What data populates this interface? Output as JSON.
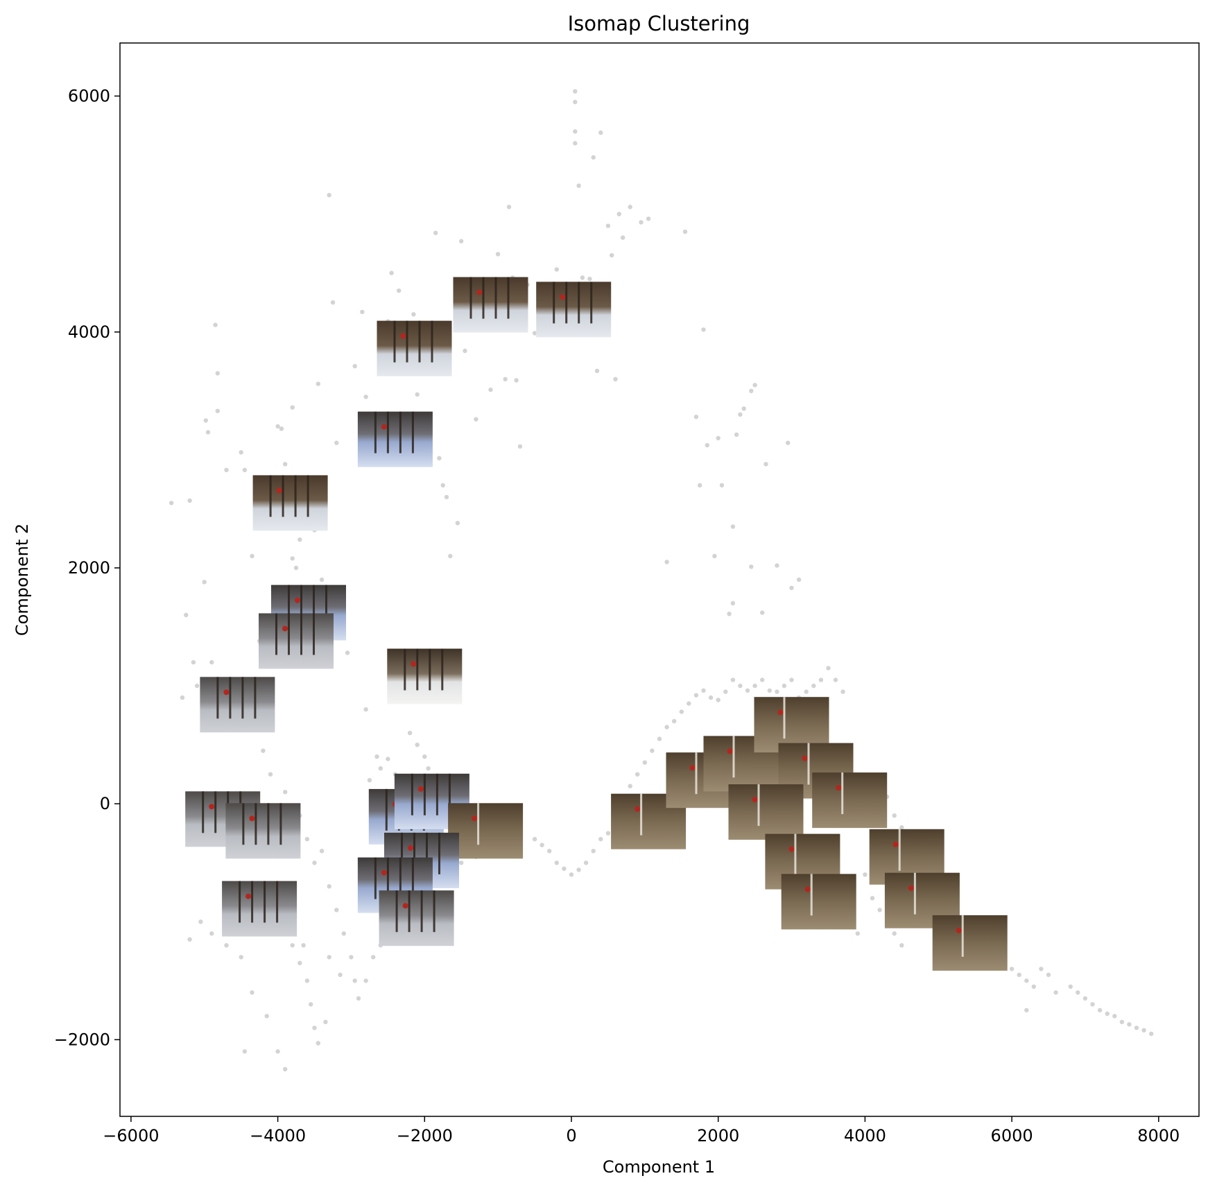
{
  "chart_data": {
    "type": "scatter",
    "title": "Isomap Clustering",
    "xlabel": "Component 1",
    "ylabel": "Component 2",
    "xlim": [
      -6150,
      8550
    ],
    "ylim": [
      -2650,
      6450
    ],
    "xticks": [
      -6000,
      -4000,
      -2000,
      0,
      2000,
      4000,
      6000,
      8000
    ],
    "yticks": [
      -2000,
      0,
      2000,
      4000,
      6000
    ],
    "grid": false,
    "legend": "none",
    "point_color": "#d3d3d3",
    "points": [
      [
        -5450,
        2550
      ],
      [
        -5200,
        2570
      ],
      [
        -5250,
        1600
      ],
      [
        -5150,
        1200
      ],
      [
        -5000,
        1880
      ],
      [
        -4950,
        3150
      ],
      [
        -4980,
        3250
      ],
      [
        -4850,
        4060
      ],
      [
        -4820,
        3650
      ],
      [
        -4820,
        3330
      ],
      [
        -4700,
        2830
      ],
      [
        -4500,
        2980
      ],
      [
        -4450,
        2830
      ],
      [
        -4350,
        2100
      ],
      [
        -4250,
        1380
      ],
      [
        -4200,
        1300
      ],
      [
        -4000,
        3200
      ],
      [
        -3950,
        3180
      ],
      [
        -3950,
        2560
      ],
      [
        -3900,
        2880
      ],
      [
        -3880,
        1650
      ],
      [
        -3800,
        3360
      ],
      [
        -3800,
        2080
      ],
      [
        -3750,
        2000
      ],
      [
        -3700,
        2240
      ],
      [
        -3600,
        2460
      ],
      [
        -3500,
        2320
      ],
      [
        -3450,
        3560
      ],
      [
        -3400,
        1900
      ],
      [
        -3350,
        1500
      ],
      [
        -3300,
        5160
      ],
      [
        -3250,
        4250
      ],
      [
        -3200,
        3060
      ],
      [
        -3100,
        1420
      ],
      [
        -3050,
        1280
      ],
      [
        -2950,
        3710
      ],
      [
        -2850,
        4170
      ],
      [
        -2800,
        3450
      ],
      [
        -2700,
        3270
      ],
      [
        -2600,
        4060
      ],
      [
        -2500,
        4090
      ],
      [
        -2450,
        4500
      ],
      [
        -2350,
        4350
      ],
      [
        -2250,
        3890
      ],
      [
        -2150,
        4150
      ],
      [
        -2100,
        3470
      ],
      [
        -2000,
        4000
      ],
      [
        -1850,
        4840
      ],
      [
        -1800,
        2930
      ],
      [
        -1750,
        2700
      ],
      [
        -1700,
        2600
      ],
      [
        -1650,
        2100
      ],
      [
        -1550,
        2380
      ],
      [
        -1500,
        4770
      ],
      [
        -1450,
        3840
      ],
      [
        -1350,
        4330
      ],
      [
        -1300,
        3260
      ],
      [
        -1250,
        4020
      ],
      [
        -1100,
        3510
      ],
      [
        -1000,
        4660
      ],
      [
        -900,
        3600
      ],
      [
        -800,
        4460
      ],
      [
        -750,
        3590
      ],
      [
        -700,
        3030
      ],
      [
        -850,
        5060
      ],
      [
        -600,
        4400
      ],
      [
        -500,
        3990
      ],
      [
        -400,
        4330
      ],
      [
        -300,
        4400
      ],
      [
        -200,
        4530
      ],
      [
        -100,
        4150
      ],
      [
        50,
        6040
      ],
      [
        50,
        5950
      ],
      [
        50,
        5700
      ],
      [
        50,
        5600
      ],
      [
        100,
        5240
      ],
      [
        150,
        4460
      ],
      [
        250,
        4450
      ],
      [
        300,
        5480
      ],
      [
        400,
        5690
      ],
      [
        350,
        3670
      ],
      [
        500,
        4900
      ],
      [
        550,
        4650
      ],
      [
        600,
        3600
      ],
      [
        650,
        5000
      ],
      [
        700,
        4800
      ],
      [
        800,
        5060
      ],
      [
        950,
        4930
      ],
      [
        1050,
        4960
      ],
      [
        1300,
        2050
      ],
      [
        1550,
        4850
      ],
      [
        1700,
        3280
      ],
      [
        1750,
        2700
      ],
      [
        1800,
        4020
      ],
      [
        1850,
        3040
      ],
      [
        1950,
        2100
      ],
      [
        2000,
        3100
      ],
      [
        2050,
        2700
      ],
      [
        2200,
        2350
      ],
      [
        2250,
        3130
      ],
      [
        2300,
        3300
      ],
      [
        2350,
        3350
      ],
      [
        2450,
        3500
      ],
      [
        2500,
        3550
      ],
      [
        2450,
        2010
      ],
      [
        2650,
        2880
      ],
      [
        2800,
        2020
      ],
      [
        2950,
        3060
      ],
      [
        3000,
        1830
      ],
      [
        3100,
        1900
      ],
      [
        2200,
        1700
      ],
      [
        2150,
        1610
      ],
      [
        2600,
        1620
      ],
      [
        -5300,
        900
      ],
      [
        -5100,
        1000
      ],
      [
        -4900,
        1200
      ],
      [
        -4800,
        950
      ],
      [
        -4600,
        700
      ],
      [
        -4400,
        800
      ],
      [
        -4200,
        450
      ],
      [
        -4100,
        250
      ],
      [
        -3900,
        100
      ],
      [
        -3700,
        -100
      ],
      [
        -3600,
        -300
      ],
      [
        -3500,
        -500
      ],
      [
        -3400,
        -400
      ],
      [
        -3300,
        -700
      ],
      [
        -3200,
        -900
      ],
      [
        -3100,
        -1100
      ],
      [
        -3000,
        -1300
      ],
      [
        -2950,
        -1500
      ],
      [
        -2900,
        -1650
      ],
      [
        -2800,
        -1500
      ],
      [
        -2700,
        -1300
      ],
      [
        -2600,
        -1200
      ],
      [
        -2500,
        -1000
      ],
      [
        -3800,
        -1200
      ],
      [
        -3700,
        -1350
      ],
      [
        -3600,
        -1500
      ],
      [
        -3550,
        -1700
      ],
      [
        -3500,
        -1900
      ],
      [
        -3450,
        -2030
      ],
      [
        -3350,
        -1850
      ],
      [
        -4000,
        -2100
      ],
      [
        -3900,
        -2250
      ],
      [
        -4150,
        -1800
      ],
      [
        -4350,
        -1600
      ],
      [
        -4500,
        -1300
      ],
      [
        -4700,
        -1200
      ],
      [
        -4900,
        -1100
      ],
      [
        -5050,
        -1000
      ],
      [
        -5200,
        -1150
      ],
      [
        -4450,
        -2100
      ],
      [
        -3650,
        -1200
      ],
      [
        -3300,
        -1300
      ],
      [
        -3150,
        -1450
      ],
      [
        -2800,
        800
      ],
      [
        -2750,
        200
      ],
      [
        -2650,
        400
      ],
      [
        -2600,
        300
      ],
      [
        -2500,
        380
      ],
      [
        -2400,
        250
      ],
      [
        -2300,
        150
      ],
      [
        -2200,
        600
      ],
      [
        -2100,
        500
      ],
      [
        -2000,
        400
      ],
      [
        -1950,
        300
      ],
      [
        -1850,
        200
      ],
      [
        -1800,
        100
      ],
      [
        -1500,
        -500
      ],
      [
        -1300,
        -450
      ],
      [
        -1100,
        -400
      ],
      [
        -900,
        -350
      ],
      [
        -700,
        -300
      ],
      [
        -500,
        -300
      ],
      [
        -400,
        -350
      ],
      [
        -300,
        -400
      ],
      [
        -200,
        -500
      ],
      [
        -100,
        -550
      ],
      [
        0,
        -600
      ],
      [
        100,
        -560
      ],
      [
        200,
        -500
      ],
      [
        300,
        -400
      ],
      [
        400,
        -300
      ],
      [
        500,
        -250
      ],
      [
        600,
        -150
      ],
      [
        700,
        0
      ],
      [
        800,
        150
      ],
      [
        900,
        250
      ],
      [
        1000,
        350
      ],
      [
        1100,
        450
      ],
      [
        1200,
        550
      ],
      [
        1300,
        650
      ],
      [
        1400,
        700
      ],
      [
        1500,
        780
      ],
      [
        1600,
        850
      ],
      [
        1700,
        920
      ],
      [
        1800,
        960
      ],
      [
        1900,
        900
      ],
      [
        2000,
        880
      ],
      [
        2100,
        950
      ],
      [
        2200,
        1050
      ],
      [
        2300,
        1000
      ],
      [
        2400,
        960
      ],
      [
        2500,
        1000
      ],
      [
        2600,
        1050
      ],
      [
        2700,
        960
      ],
      [
        2800,
        950
      ],
      [
        2900,
        1000
      ],
      [
        3000,
        1050
      ],
      [
        3100,
        900
      ],
      [
        3200,
        950
      ],
      [
        3300,
        1000
      ],
      [
        3400,
        1050
      ],
      [
        3500,
        1150
      ],
      [
        3600,
        1050
      ],
      [
        3700,
        950
      ],
      [
        4100,
        180
      ],
      [
        4200,
        50
      ],
      [
        4300,
        60
      ],
      [
        4400,
        -100
      ],
      [
        4500,
        -200
      ],
      [
        4600,
        -300
      ],
      [
        4700,
        -400
      ],
      [
        4800,
        -700
      ],
      [
        5000,
        -800
      ],
      [
        5100,
        -900
      ],
      [
        5200,
        -1000
      ],
      [
        5300,
        -1050
      ],
      [
        5400,
        -1100
      ],
      [
        5500,
        -1100
      ],
      [
        5600,
        -1200
      ],
      [
        5700,
        -1250
      ],
      [
        5800,
        -1300
      ],
      [
        5900,
        -1350
      ],
      [
        6000,
        -1400
      ],
      [
        6100,
        -1450
      ],
      [
        6200,
        -1500
      ],
      [
        6300,
        -1550
      ],
      [
        6400,
        -1400
      ],
      [
        6500,
        -1450
      ],
      [
        6600,
        -1600
      ],
      [
        6800,
        -1550
      ],
      [
        6900,
        -1600
      ],
      [
        7000,
        -1650
      ],
      [
        7100,
        -1700
      ],
      [
        7200,
        -1750
      ],
      [
        7300,
        -1780
      ],
      [
        7400,
        -1800
      ],
      [
        7500,
        -1850
      ],
      [
        7600,
        -1870
      ],
      [
        7700,
        -1900
      ],
      [
        7800,
        -1920
      ],
      [
        7900,
        -1950
      ],
      [
        4000,
        -600
      ],
      [
        4100,
        -800
      ],
      [
        4200,
        -900
      ],
      [
        4300,
        -1000
      ],
      [
        4400,
        -1100
      ],
      [
        3900,
        -1100
      ],
      [
        3800,
        -1000
      ],
      [
        4500,
        -1200
      ],
      [
        6200,
        -1750
      ]
    ],
    "thumbnails": [
      {
        "x": -1100,
        "y": 4230,
        "tone": "snow-dark"
      },
      {
        "x": 30,
        "y": 4190,
        "tone": "snow-dark"
      },
      {
        "x": -2140,
        "y": 3860,
        "tone": "snow-dark"
      },
      {
        "x": -2400,
        "y": 3090,
        "tone": "snow-blue"
      },
      {
        "x": -3830,
        "y": 2550,
        "tone": "snow-dark"
      },
      {
        "x": -3580,
        "y": 1620,
        "tone": "snow-blue"
      },
      {
        "x": -3750,
        "y": 1380,
        "tone": "snow-grey"
      },
      {
        "x": -2000,
        "y": 1080,
        "tone": "snow-bright"
      },
      {
        "x": -4550,
        "y": 840,
        "tone": "snow-grey"
      },
      {
        "x": -4750,
        "y": -130,
        "tone": "snow-grey"
      },
      {
        "x": -4200,
        "y": -230,
        "tone": "snow-grey"
      },
      {
        "x": -4250,
        "y": -890,
        "tone": "snow-grey"
      },
      {
        "x": -2250,
        "y": -110,
        "tone": "snow-blue"
      },
      {
        "x": -1900,
        "y": 20,
        "tone": "snow-blue"
      },
      {
        "x": -1170,
        "y": -230,
        "tone": "forest"
      },
      {
        "x": -2040,
        "y": -480,
        "tone": "snow-blue"
      },
      {
        "x": -2400,
        "y": -690,
        "tone": "snow-blue"
      },
      {
        "x": -2110,
        "y": -970,
        "tone": "snow-grey"
      },
      {
        "x": 1050,
        "y": -150,
        "tone": "forest"
      },
      {
        "x": 1800,
        "y": 200,
        "tone": "forest"
      },
      {
        "x": 2310,
        "y": 340,
        "tone": "forest"
      },
      {
        "x": 3000,
        "y": 670,
        "tone": "forest"
      },
      {
        "x": 3330,
        "y": 280,
        "tone": "forest"
      },
      {
        "x": 2650,
        "y": -70,
        "tone": "forest"
      },
      {
        "x": 3790,
        "y": 30,
        "tone": "forest"
      },
      {
        "x": 3150,
        "y": -490,
        "tone": "forest"
      },
      {
        "x": 3370,
        "y": -830,
        "tone": "forest"
      },
      {
        "x": 4570,
        "y": -450,
        "tone": "forest"
      },
      {
        "x": 4780,
        "y": -820,
        "tone": "forest"
      },
      {
        "x": 5430,
        "y": -1180,
        "tone": "forest"
      }
    ]
  }
}
